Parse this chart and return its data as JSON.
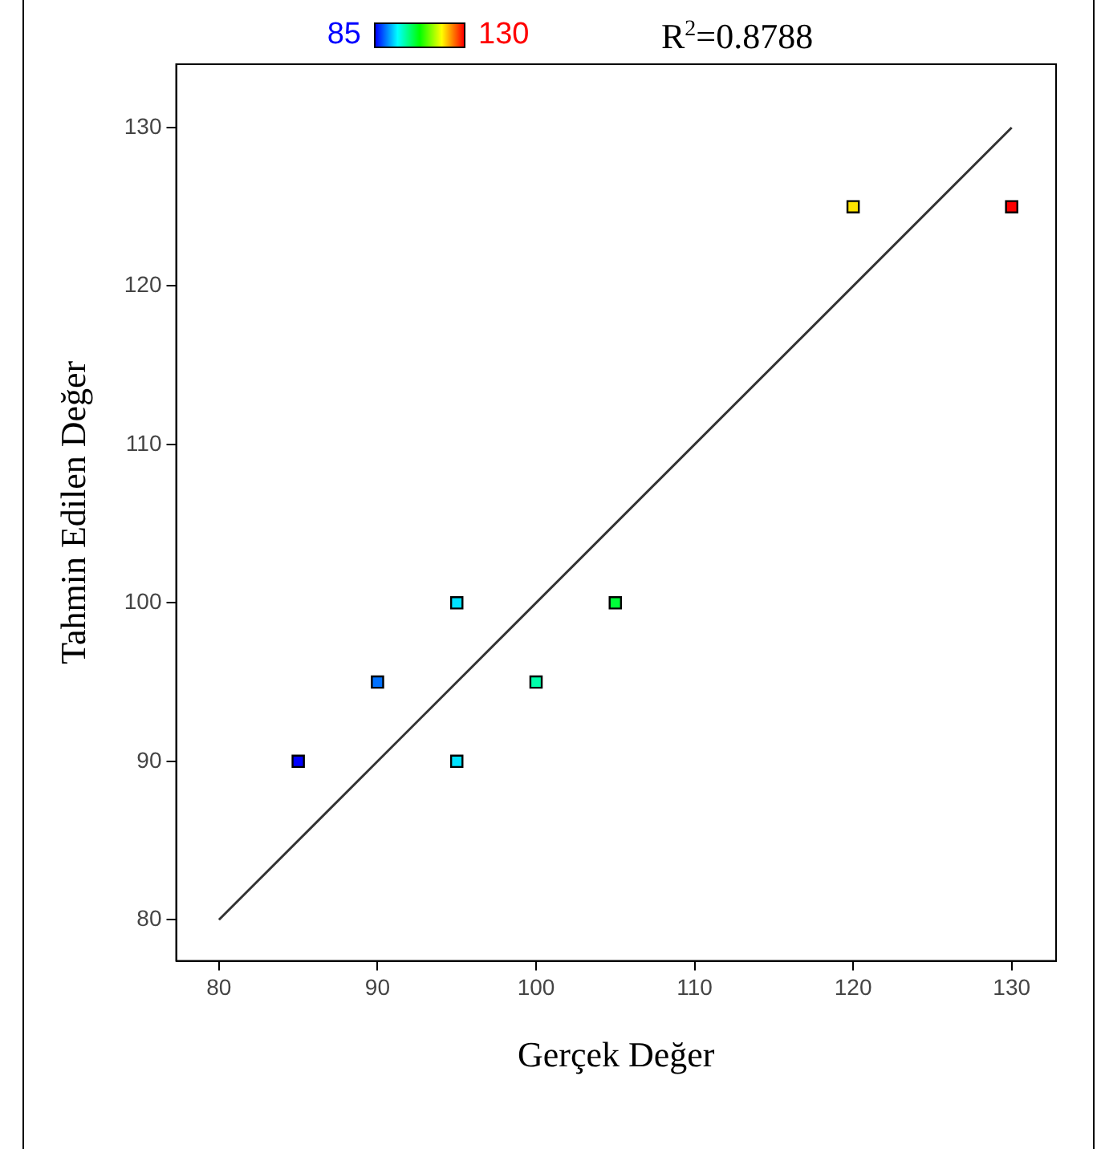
{
  "chart_data": {
    "type": "scatter",
    "xlabel": "Gerçek Değer",
    "ylabel": "Tahmin Edilen Değer",
    "xlim": [
      77.3,
      132.8
    ],
    "ylim": [
      77.4,
      134
    ],
    "xticks": [
      80,
      90,
      100,
      110,
      120,
      130
    ],
    "yticks": [
      80,
      90,
      100,
      110,
      120,
      130
    ],
    "annotations": [
      "85",
      "130",
      "R$^{2}$=0.8788"
    ],
    "series": [
      {
        "marker": "square",
        "x": [
          85,
          90,
          95,
          95,
          100,
          105,
          120,
          130
        ],
        "values": [
          90,
          95,
          100,
          90,
          95,
          100,
          125,
          125
        ],
        "colors": [
          "#0000ff",
          "#0071ff",
          "#00e2ff",
          "#00e2ff",
          "#00ffaa",
          "#00ff39",
          "#ffe300",
          "#ff0000"
        ]
      },
      {
        "type": "line",
        "x": [
          80,
          130
        ],
        "values": [
          80,
          130
        ],
        "color": "#333333"
      }
    ]
  }
}
